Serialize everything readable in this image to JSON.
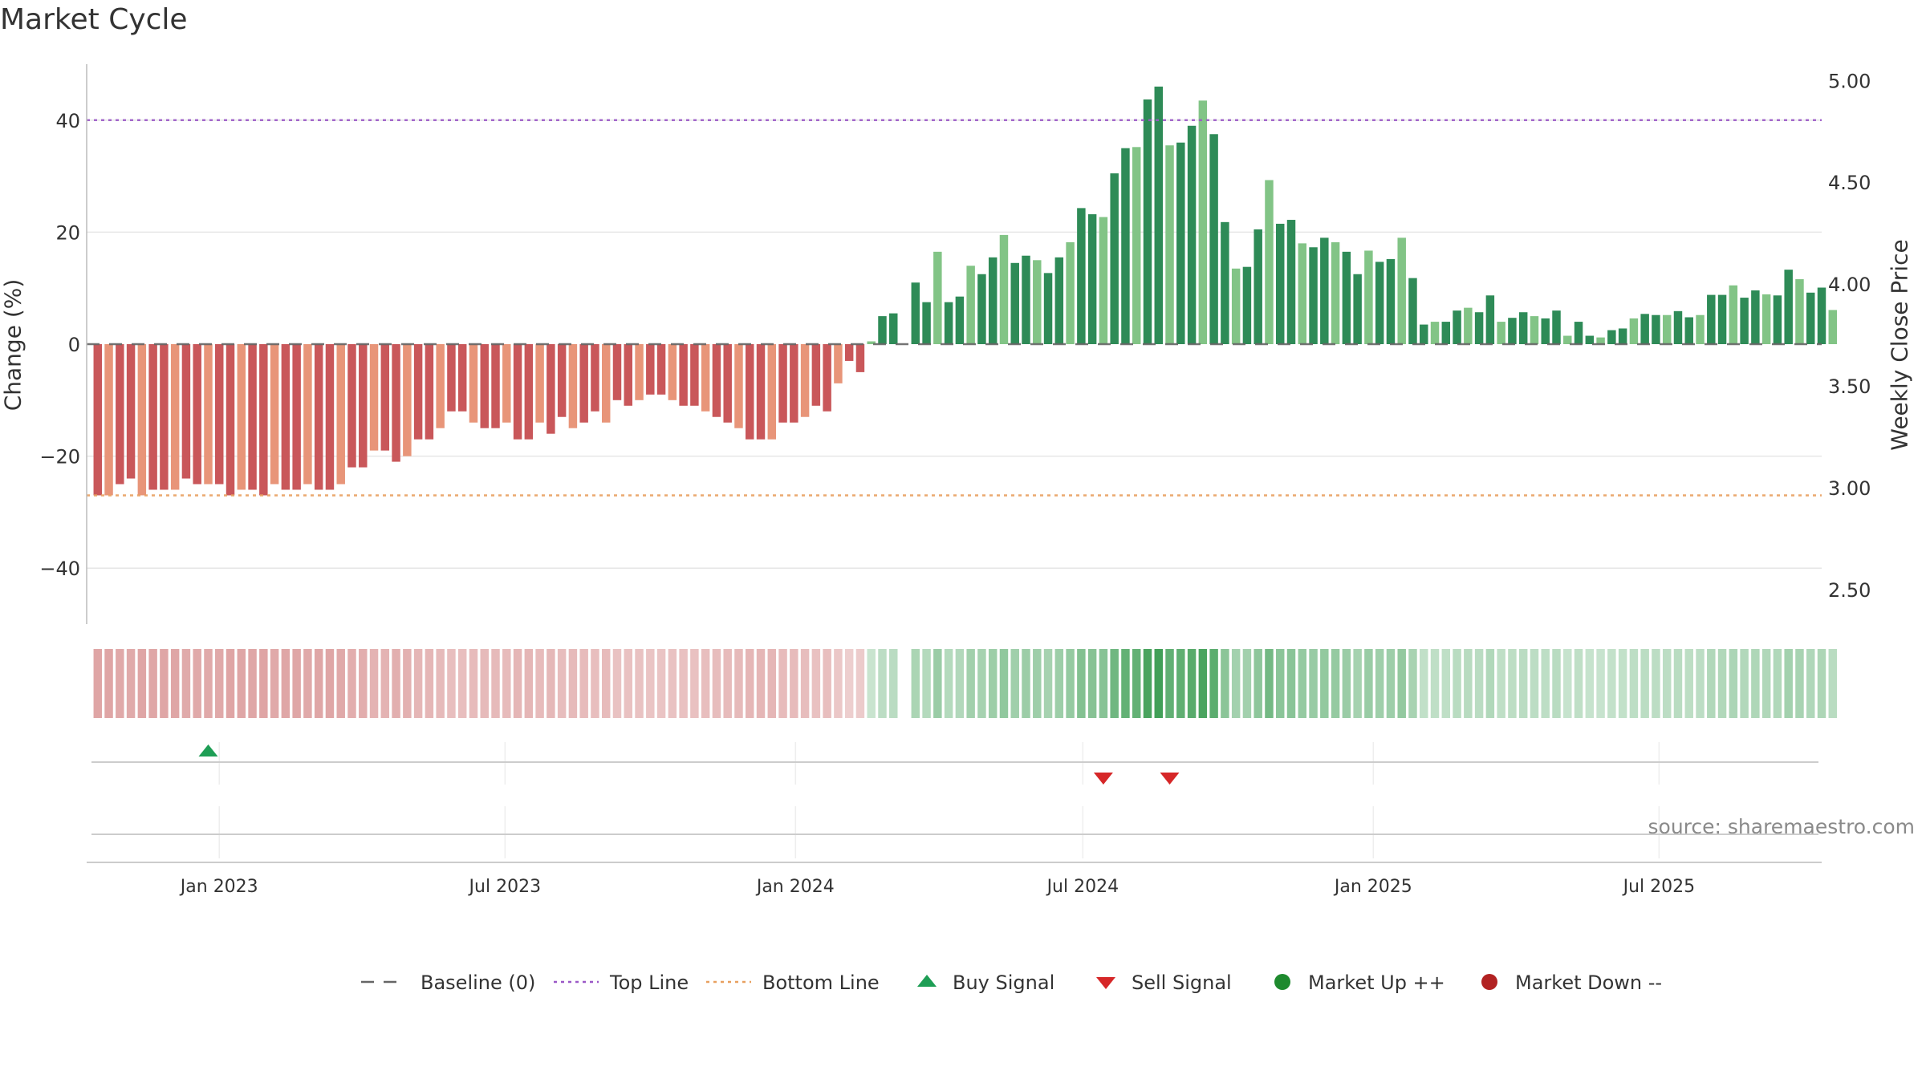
{
  "chart_data": {
    "type": "bar",
    "title": "Market Cycle",
    "ylabel": "Change (%)",
    "y2label": "Weekly Close Price",
    "ylim": [
      -50,
      50
    ],
    "y2lim": [
      2.33,
      5.08
    ],
    "yticks": [
      40,
      20,
      0,
      -20,
      -40
    ],
    "ytick_labels": [
      "40",
      "20",
      "0",
      "−20",
      "−40"
    ],
    "y2ticks": [
      5.0,
      4.5,
      4.0,
      3.5,
      3.0,
      2.5
    ],
    "y2tick_labels": [
      "5.00",
      "4.50",
      "4.00",
      "3.50",
      "3.00",
      "2.50"
    ],
    "xticks": [
      "2023-01-01",
      "2023-07-01",
      "2024-01-01",
      "2024-07-01",
      "2025-01-01",
      "2025-07-01"
    ],
    "xtick_labels": [
      "Jan 2023",
      "Jul 2023",
      "Jan 2024",
      "Jul 2024",
      "Jan 2025",
      "Jul 2025"
    ],
    "x_start": "2022-10-09",
    "x_end": "2025-10-12",
    "grid": true,
    "legend_position": "bottom",
    "reference_lines": [
      {
        "name": "Baseline (0)",
        "value": 0,
        "style": "dashed",
        "color": "#666666"
      },
      {
        "name": "Top Line",
        "value": 40,
        "style": "dotted",
        "color": "#9b59c7"
      },
      {
        "name": "Bottom Line",
        "value": -27,
        "style": "dotted",
        "color": "#e8a060"
      }
    ],
    "series": [
      {
        "name": "Change (%)",
        "x_start": "2022-10-16",
        "interval_days": 7,
        "values": [
          -27,
          -27,
          -25,
          -24,
          -27,
          -26,
          -26,
          -26,
          -24,
          -25,
          -25,
          -25,
          -27,
          -26,
          -26,
          -27,
          -25,
          -26,
          -26,
          -25,
          -26,
          -26,
          -25,
          -22,
          -22,
          -19,
          -19,
          -21,
          -20,
          -17,
          -17,
          -15,
          -12,
          -12,
          -14,
          -15,
          -15,
          -14,
          -17,
          -17,
          -14,
          -16,
          -13,
          -15,
          -14,
          -12,
          -14,
          -10,
          -11,
          -10,
          -9,
          -9,
          -10,
          -11,
          -11,
          -12,
          -13,
          -14,
          -15,
          -17,
          -17,
          -17,
          -14,
          -14,
          -13,
          -11,
          -12,
          -7,
          -3,
          -5,
          0.5,
          5,
          5.5,
          null,
          11,
          7.5,
          16.5,
          7.5,
          8.5,
          14,
          12.5,
          15.5,
          19.5,
          14.5,
          15.8,
          15,
          12.7,
          15.5,
          18.2,
          24.3,
          23.2,
          22.7,
          30.5,
          35,
          35.2,
          43.7,
          46,
          35.5,
          36,
          39,
          43.5,
          37.5,
          21.8,
          13.5,
          13.8,
          20.5,
          29.3,
          21.5,
          22.2,
          18,
          17.3,
          19,
          18.2,
          16.5,
          12.5,
          16.7,
          14.7,
          15.2,
          19,
          11.8,
          3.5,
          4,
          4,
          6,
          6.5,
          5.7,
          8.7,
          4,
          4.7,
          5.7,
          5,
          4.6,
          6,
          1.5,
          4,
          1.5,
          1.2,
          2.5,
          2.8,
          4.6,
          5.4,
          5.2,
          5.2,
          5.9,
          4.8,
          5.2,
          8.8,
          8.8,
          10.5,
          8.3,
          9.6,
          8.9,
          8.7,
          13.3,
          11.6,
          9.2,
          10.1,
          6.1
        ]
      },
      {
        "name": "Market Up ++",
        "color": "#2e8b57"
      },
      {
        "name": "Market Down --",
        "color": "#c0392b"
      }
    ],
    "signals": [
      {
        "name": "Buy Signal",
        "date": "2022-12-25",
        "color": "#1e9e55"
      },
      {
        "name": "Sell Signal",
        "date": "2024-07-14",
        "color": "#d62728"
      },
      {
        "name": "Sell Signal",
        "date": "2024-08-25",
        "color": "#d62728"
      }
    ],
    "legend": [
      {
        "label": "Baseline (0)",
        "symbol": "dash",
        "color": "#666666"
      },
      {
        "label": "Top Line",
        "symbol": "dotline",
        "color": "#9b59c7"
      },
      {
        "label": "Bottom Line",
        "symbol": "dotline",
        "color": "#e8a060"
      },
      {
        "label": "Buy Signal",
        "symbol": "triangle-up",
        "color": "#1e9e55"
      },
      {
        "label": "Sell Signal",
        "symbol": "triangle-down",
        "color": "#d62728"
      },
      {
        "label": "Market Up ++",
        "symbol": "circle",
        "color": "#1e8a2e"
      },
      {
        "label": "Market Down --",
        "symbol": "circle",
        "color": "#b22222"
      }
    ],
    "source": "source: sharemaestro.com"
  }
}
